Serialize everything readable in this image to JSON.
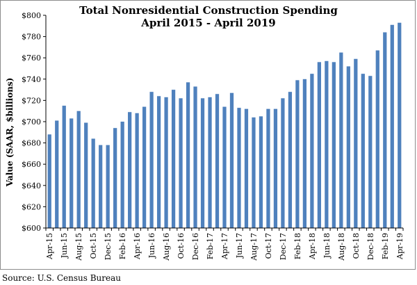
{
  "chart_data": {
    "type": "bar",
    "title": "Total Nonresidential Construction Spending",
    "subtitle": "April 2015 - April 2019",
    "ylabel": "Value (SAAR, $billions)",
    "xlabel": "",
    "ylim": [
      600,
      800
    ],
    "yticks": [
      "$600",
      "$620",
      "$640",
      "$660",
      "$680",
      "$700",
      "$720",
      "$740",
      "$760",
      "$780",
      "$800"
    ],
    "grid": false,
    "legend": "none",
    "bar_color": "#4f81bd",
    "categories": [
      "Apr-15",
      "May-15",
      "Jun-15",
      "Jul-15",
      "Aug-15",
      "Sep-15",
      "Oct-15",
      "Nov-15",
      "Dec-15",
      "Jan-16",
      "Feb-16",
      "Mar-16",
      "Apr-16",
      "May-16",
      "Jun-16",
      "Jul-16",
      "Aug-16",
      "Sep-16",
      "Oct-16",
      "Nov-16",
      "Dec-16",
      "Jan-17",
      "Feb-17",
      "Mar-17",
      "Apr-17",
      "May-17",
      "Jun-17",
      "Jul-17",
      "Aug-17",
      "Sep-17",
      "Oct-17",
      "Nov-17",
      "Dec-17",
      "Jan-18",
      "Feb-18",
      "Mar-18",
      "Apr-18",
      "May-18",
      "Jun-18",
      "Jul-18",
      "Aug-18",
      "Sep-18",
      "Oct-18",
      "Nov-18",
      "Dec-18",
      "Jan-19",
      "Feb-19",
      "Mar-19",
      "Apr-19"
    ],
    "tick_labels": [
      "Apr-15",
      "Jun-15",
      "Aug-15",
      "Oct-15",
      "Dec-15",
      "Feb-16",
      "Apr-16",
      "Jun-16",
      "Aug-16",
      "Oct-16",
      "Dec-16",
      "Feb-17",
      "Apr-17",
      "Jun-17",
      "Aug-17",
      "Oct-17",
      "Dec-17",
      "Feb-18",
      "Apr-18",
      "Jun-18",
      "Aug-18",
      "Oct-18",
      "Dec-18",
      "Feb-19",
      "Apr-19"
    ],
    "values": [
      688,
      701,
      715,
      703,
      710,
      699,
      684,
      678,
      678,
      694,
      700,
      709,
      708,
      714,
      728,
      724,
      723,
      730,
      722,
      737,
      733,
      722,
      723,
      726,
      714,
      727,
      713,
      712,
      704,
      705,
      712,
      712,
      722,
      728,
      739,
      740,
      745,
      756,
      757,
      756,
      765,
      752,
      759,
      745,
      743,
      767,
      784,
      791,
      793
    ]
  },
  "source": "Source:  U.S. Census Bureau"
}
